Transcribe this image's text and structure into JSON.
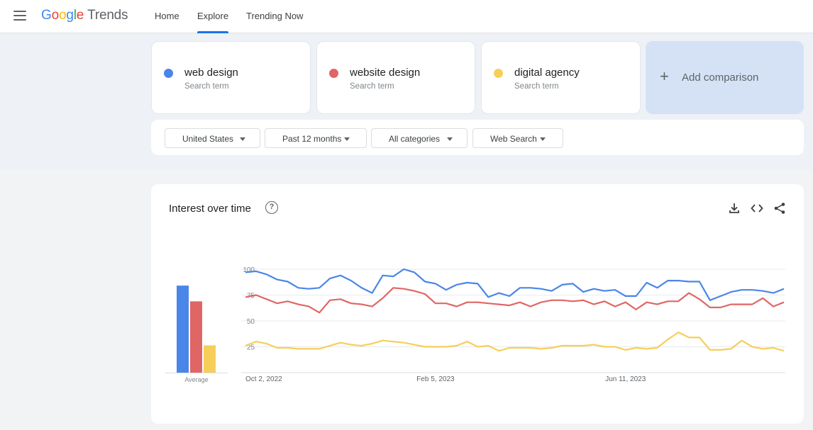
{
  "header": {
    "logo_google": [
      "G",
      "o",
      "o",
      "g",
      "l",
      "e"
    ],
    "logo_trends": "Trends",
    "nav": [
      {
        "label": "Home"
      },
      {
        "label": "Explore",
        "active": true
      },
      {
        "label": "Trending Now"
      }
    ]
  },
  "terms": [
    {
      "name": "web design",
      "sub": "Search term",
      "color": "#4a86e8"
    },
    {
      "name": "website design",
      "sub": "Search term",
      "color": "#e06666"
    },
    {
      "name": "digital agency",
      "sub": "Search term",
      "color": "#f6cf5a"
    }
  ],
  "add_comparison": {
    "label": "Add comparison",
    "icon": "plus-icon"
  },
  "filters": [
    {
      "label": "United States"
    },
    {
      "label": "Past 12 months"
    },
    {
      "label": "All categories"
    },
    {
      "label": "Web Search"
    }
  ],
  "chart_section": {
    "title": "Interest over time",
    "help_icon": "help-circle-icon",
    "tools": [
      "download-icon",
      "embed-code-icon",
      "share-icon"
    ]
  },
  "chart_data": {
    "type": "line",
    "y_ticks": [
      25,
      50,
      75,
      100
    ],
    "ylim": [
      0,
      100
    ],
    "x_tick_labels": [
      {
        "label": "Oct 2, 2022",
        "index": 0
      },
      {
        "label": "Feb 5, 2023",
        "index": 18
      },
      {
        "label": "Jun 11, 2023",
        "index": 36
      }
    ],
    "grid": true,
    "series": [
      {
        "name": "web design",
        "color": "#4a86e8",
        "values": [
          97,
          98,
          95,
          90,
          88,
          82,
          81,
          82,
          91,
          94,
          89,
          82,
          77,
          94,
          93,
          100,
          97,
          88,
          86,
          80,
          85,
          87,
          86,
          73,
          77,
          74,
          82,
          82,
          81,
          79,
          85,
          86,
          78,
          81,
          79,
          80,
          74,
          74,
          87,
          82,
          89,
          89,
          88,
          88,
          70,
          74,
          78,
          80,
          80,
          79,
          77,
          81
        ]
      },
      {
        "name": "website design",
        "color": "#e06666",
        "values": [
          73,
          75,
          71,
          67,
          69,
          66,
          64,
          58,
          70,
          71,
          67,
          66,
          64,
          72,
          82,
          81,
          79,
          76,
          67,
          67,
          64,
          68,
          68,
          67,
          66,
          65,
          68,
          64,
          68,
          70,
          70,
          69,
          70,
          66,
          69,
          64,
          68,
          61,
          68,
          66,
          69,
          69,
          77,
          71,
          63,
          63,
          66,
          66,
          66,
          72,
          64,
          68
        ]
      },
      {
        "name": "digital agency",
        "color": "#f6cf5a",
        "values": [
          26,
          30,
          28,
          24,
          24,
          23,
          23,
          23,
          26,
          29,
          27,
          26,
          28,
          31,
          30,
          29,
          27,
          25,
          25,
          25,
          26,
          30,
          25,
          26,
          21,
          24,
          24,
          24,
          23,
          24,
          26,
          26,
          26,
          27,
          25,
          25,
          22,
          24,
          23,
          24,
          32,
          39,
          34,
          34,
          22,
          22,
          23,
          31,
          25,
          23,
          24,
          21
        ]
      }
    ],
    "averages": {
      "label": "Average",
      "values": [
        83,
        68,
        26
      ]
    }
  }
}
